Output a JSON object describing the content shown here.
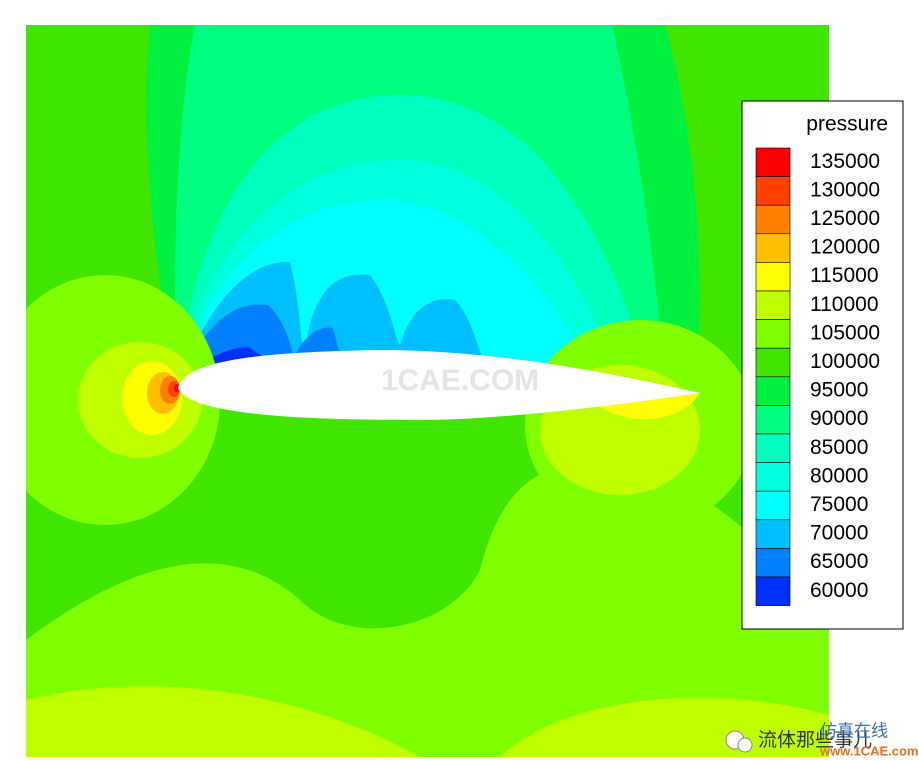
{
  "chart_data": {
    "type": "contour",
    "legend_title": "pressure",
    "legend_position": "right",
    "levels": [
      135000,
      130000,
      125000,
      120000,
      115000,
      110000,
      105000,
      100000,
      95000,
      90000,
      85000,
      80000,
      75000,
      70000,
      65000,
      60000
    ],
    "colors": [
      "#ff0000",
      "#ff4000",
      "#ff8000",
      "#ffbf00",
      "#ffff00",
      "#bfff00",
      "#80ff00",
      "#40e600",
      "#00f040",
      "#00ff80",
      "#00ffbf",
      "#00ffdd",
      "#00ffff",
      "#00bfff",
      "#0080ff",
      "#0030ff"
    ],
    "watermarks": [
      "1CAE.COM",
      "流体那些事儿",
      "仿真在线",
      "www.1CAE.com"
    ]
  }
}
